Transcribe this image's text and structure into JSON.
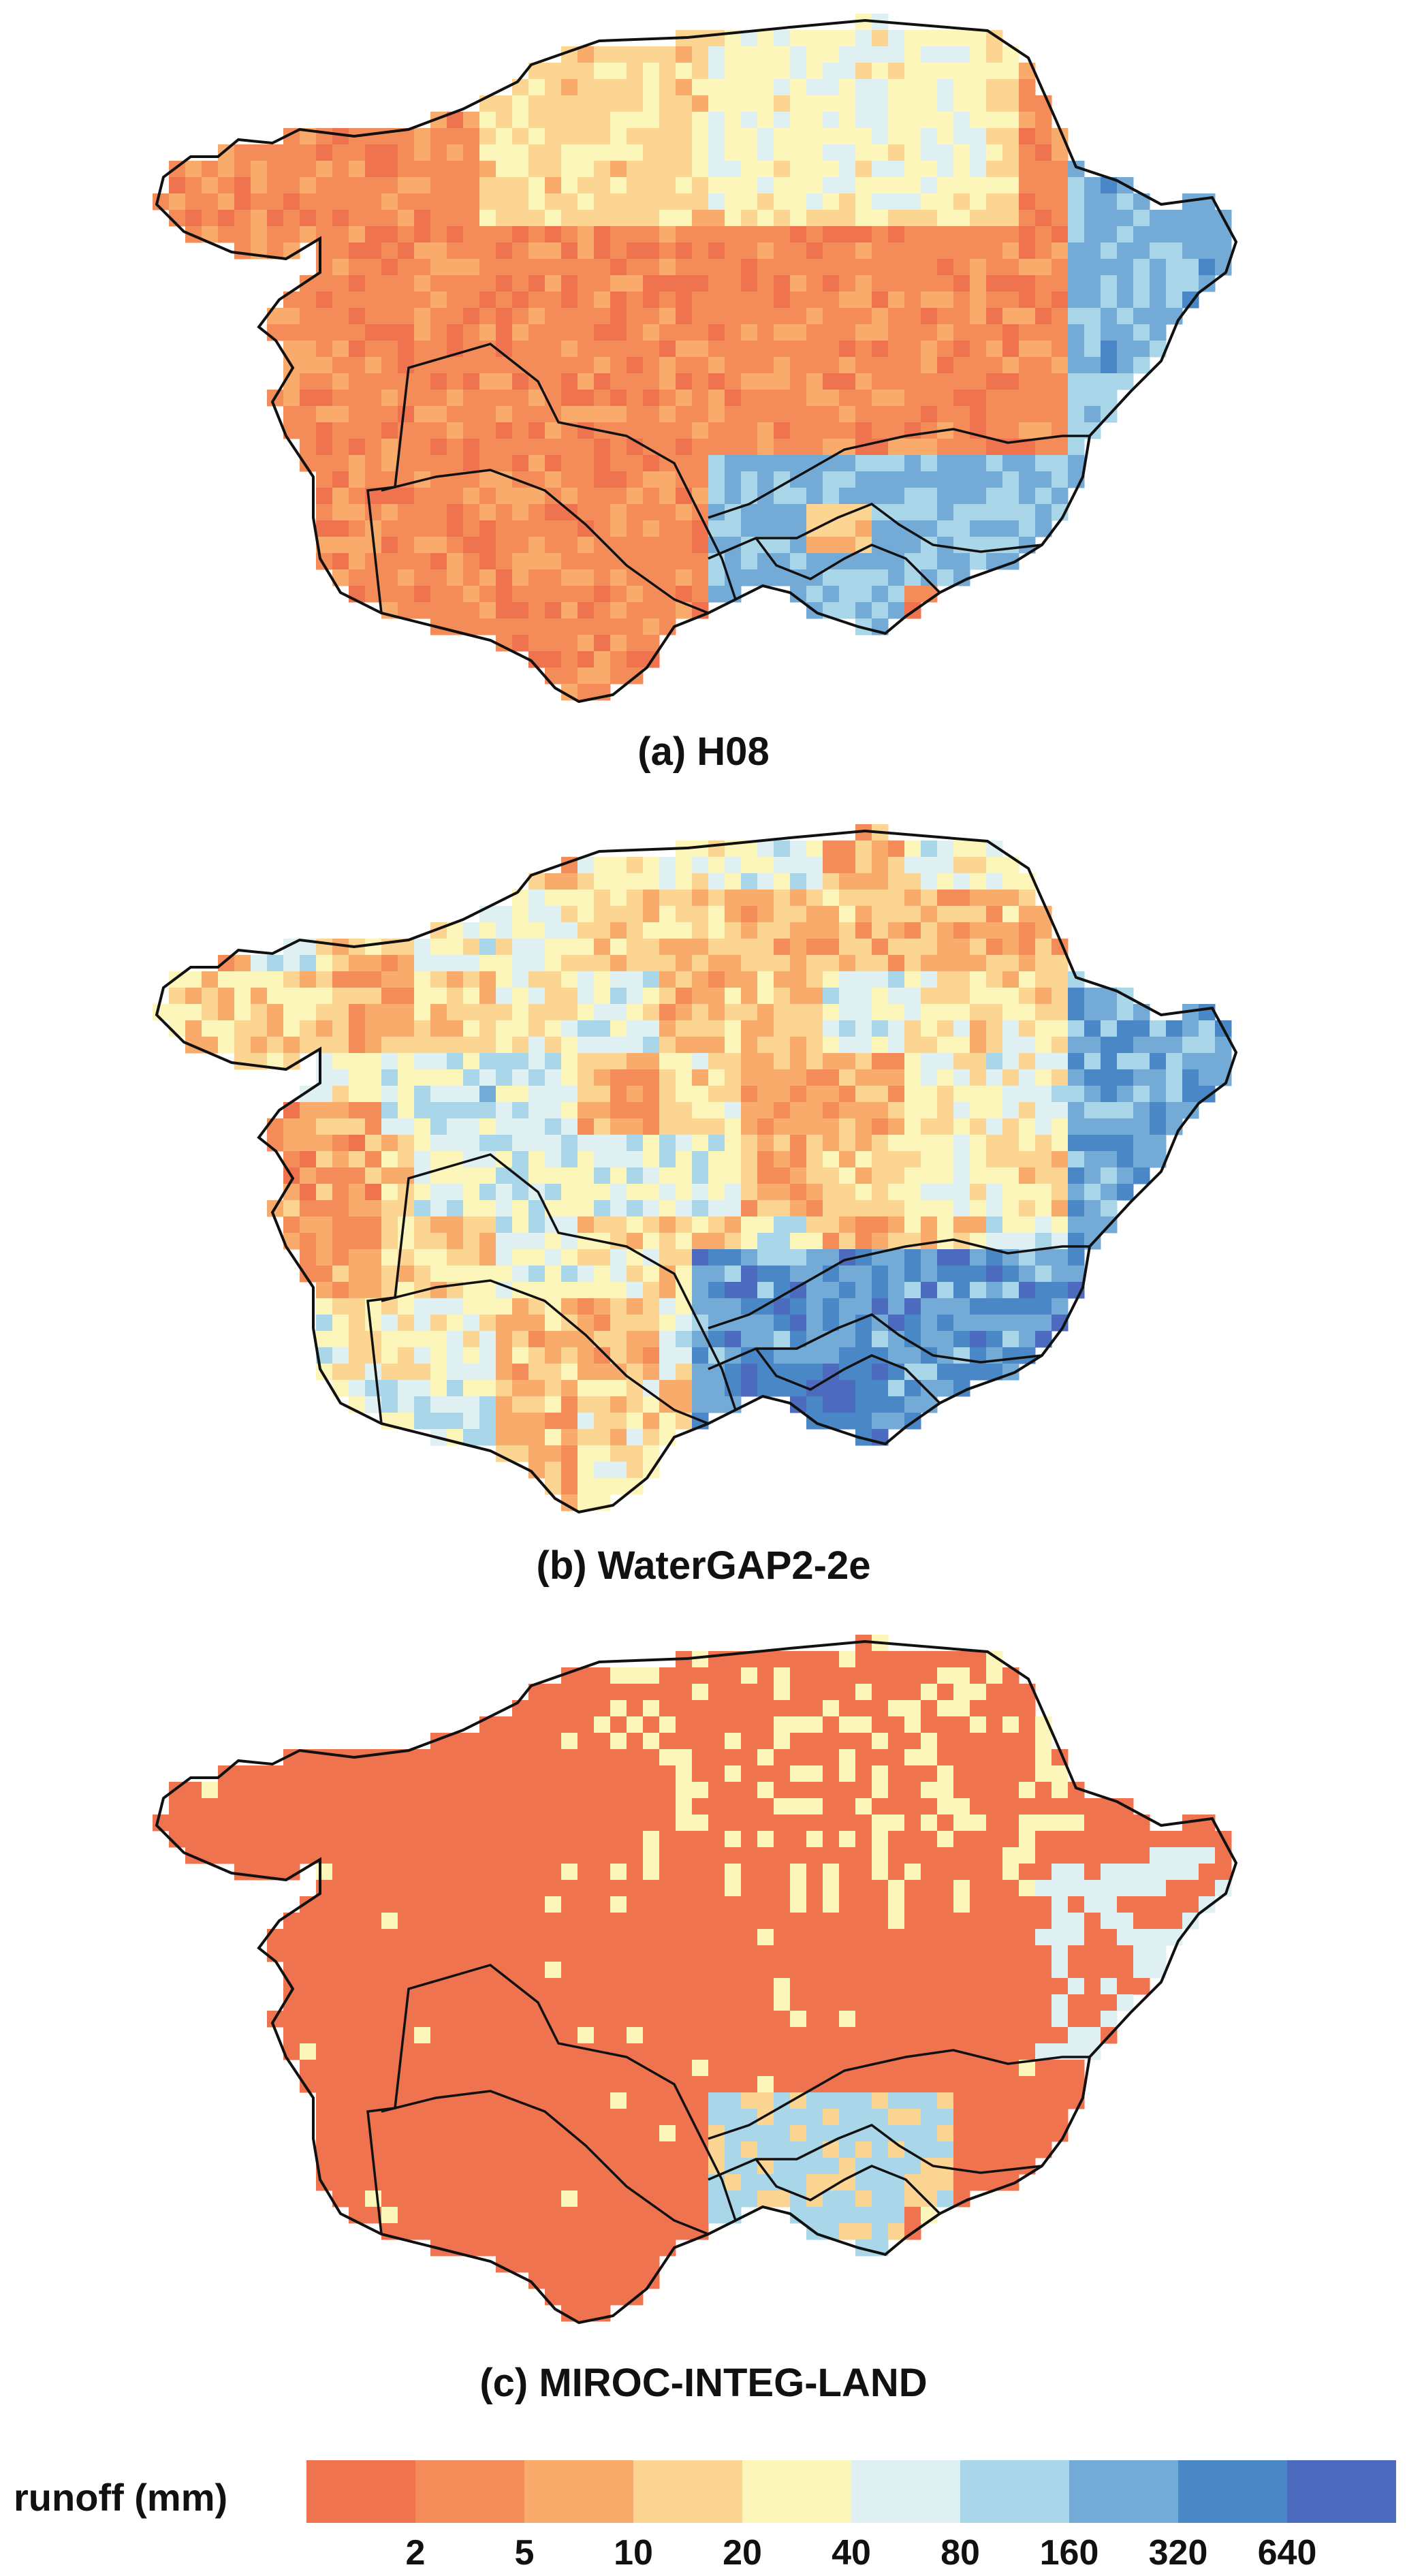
{
  "panels": [
    {
      "id": "a",
      "caption": "(a) H08"
    },
    {
      "id": "b",
      "caption": "(b) WaterGAP2-2e"
    },
    {
      "id": "c",
      "caption": "(c) MIROC-INTEG-LAND"
    }
  ],
  "legend": {
    "title": "runoff (mm)",
    "colors": [
      "#f07350",
      "#f48c5a",
      "#f8ab6a",
      "#fdd592",
      "#fdf6bb",
      "#dff0f3",
      "#a9d6e8",
      "#74abd6",
      "#4a87c6",
      "#4c6bbf"
    ],
    "ticks": [
      "2",
      "5",
      "10",
      "20",
      "40",
      "80",
      "160",
      "320",
      "640"
    ]
  }
}
